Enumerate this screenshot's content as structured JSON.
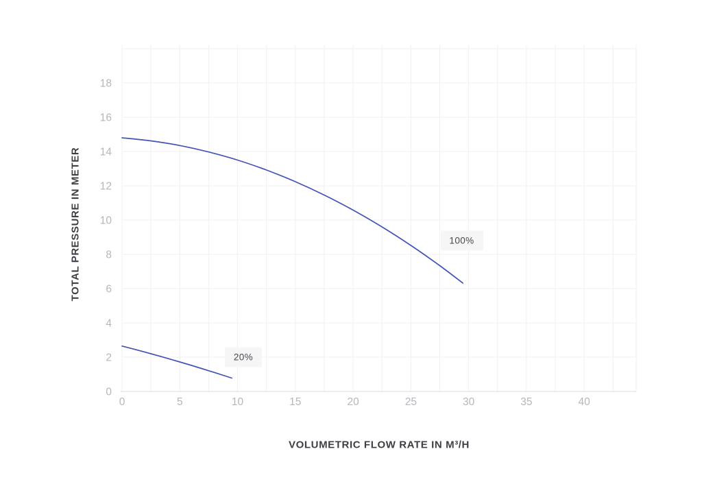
{
  "chart_data": {
    "type": "line",
    "title": "",
    "xlabel": "VOLUMETRIC FLOW RATE IN M³/H",
    "ylabel": "TOTAL PRESSURE IN METER",
    "xlim": [
      0,
      44.5
    ],
    "ylim": [
      0,
      20.2
    ],
    "x_ticks": [
      0,
      5,
      10,
      15,
      20,
      25,
      30,
      35,
      40
    ],
    "y_ticks": [
      0,
      2,
      4,
      6,
      8,
      10,
      12,
      14,
      16,
      18
    ],
    "x_grid_step": 2.5,
    "y_grid_step": 2,
    "grid": true,
    "legend_position": "inline-annotations",
    "series": [
      {
        "name": "100%",
        "points": [
          [
            0,
            14.8
          ],
          [
            2.5,
            14.62
          ],
          [
            5,
            14.35
          ],
          [
            7.5,
            13.97
          ],
          [
            10,
            13.5
          ],
          [
            12.5,
            12.92
          ],
          [
            15,
            12.24
          ],
          [
            17.5,
            11.46
          ],
          [
            20,
            10.58
          ],
          [
            22.5,
            9.6
          ],
          [
            25,
            8.52
          ],
          [
            27.5,
            7.34
          ],
          [
            29.5,
            6.32
          ]
        ]
      },
      {
        "name": "20%",
        "points": [
          [
            0,
            2.65
          ],
          [
            2.5,
            2.2
          ],
          [
            5,
            1.72
          ],
          [
            7.5,
            1.21
          ],
          [
            9.5,
            0.78
          ]
        ]
      }
    ],
    "annotations": [
      {
        "text": "100%",
        "x": 29.4,
        "y": 8.8
      },
      {
        "text": "20%",
        "x": 10.5,
        "y": 2.0
      }
    ],
    "colors": {
      "curve": "#4353b4",
      "grid": "#f1f1f4",
      "axis_line": "#e2e2e7",
      "tick_text": "#b6b6bc",
      "axis_title": "#3e3e44",
      "annotation_bg": "#f6f6f7",
      "annotation_text": "#47474d",
      "background": "#ffffff"
    }
  }
}
